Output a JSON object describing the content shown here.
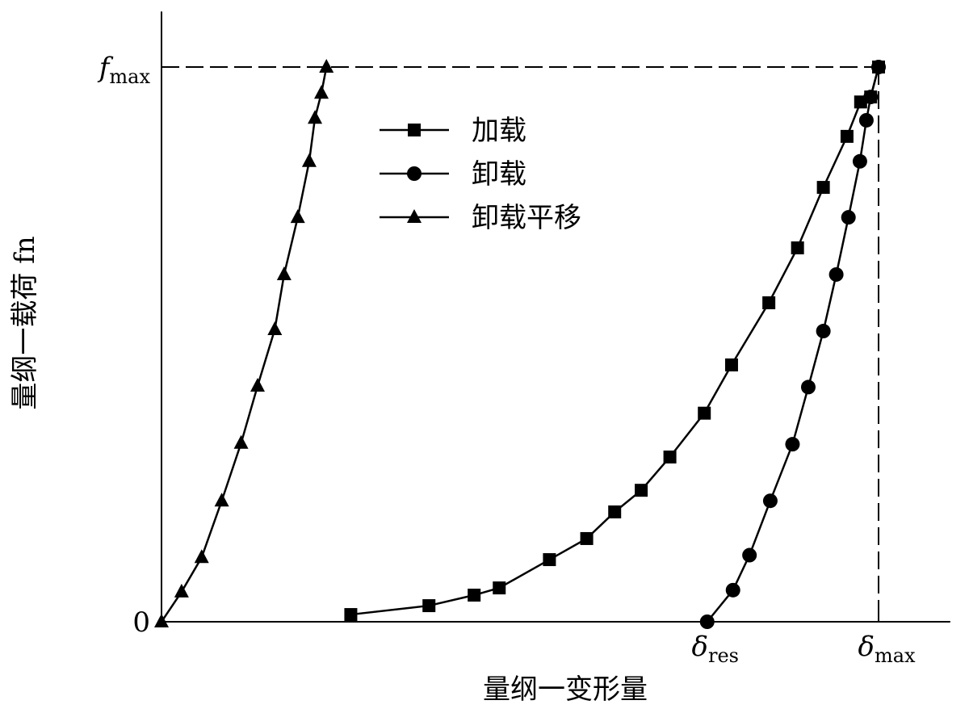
{
  "chart_data": {
    "type": "line",
    "xlabel": "量纲一变形量",
    "ylabel": "量纲一载荷 fn",
    "xlim": [
      0,
      1.1
    ],
    "ylim": [
      0,
      1.1
    ],
    "xticks": [
      {
        "value": 0.761,
        "label": "δres"
      },
      {
        "value": 1.0,
        "label": "δmax"
      }
    ],
    "yticks": [
      0,
      {
        "value": 1.0,
        "label": "fmax"
      }
    ],
    "series": [
      {
        "name": "加载",
        "marker": "square",
        "color": "#000000",
        "x": [
          0.264,
          0.373,
          0.436,
          0.471,
          0.541,
          0.593,
          0.632,
          0.669,
          0.709,
          0.757,
          0.795,
          0.847,
          0.887,
          0.923,
          0.956,
          0.975,
          0.989,
          1.0
        ],
        "values": [
          0.013,
          0.029,
          0.048,
          0.061,
          0.112,
          0.15,
          0.198,
          0.237,
          0.297,
          0.376,
          0.463,
          0.575,
          0.674,
          0.783,
          0.875,
          0.937,
          0.946,
          1.0
        ]
      },
      {
        "name": "卸载",
        "marker": "circle",
        "color": "#000000",
        "x": [
          0.761,
          0.797,
          0.82,
          0.849,
          0.88,
          0.902,
          0.923,
          0.941,
          0.958,
          0.974,
          0.983,
          0.989,
          1.0
        ],
        "values": [
          0,
          0.057,
          0.12,
          0.218,
          0.32,
          0.423,
          0.524,
          0.626,
          0.729,
          0.83,
          0.904,
          0.946,
          1.0
        ]
      },
      {
        "name": "卸载平移",
        "marker": "triangle",
        "color": "#000000",
        "x": [
          0,
          0.028,
          0.056,
          0.084,
          0.111,
          0.134,
          0.158,
          0.171,
          0.19,
          0.206,
          0.214,
          0.223,
          0.23
        ],
        "values": [
          0,
          0.054,
          0.116,
          0.218,
          0.322,
          0.425,
          0.527,
          0.626,
          0.729,
          0.83,
          0.908,
          0.953,
          1.0
        ]
      }
    ]
  }
}
